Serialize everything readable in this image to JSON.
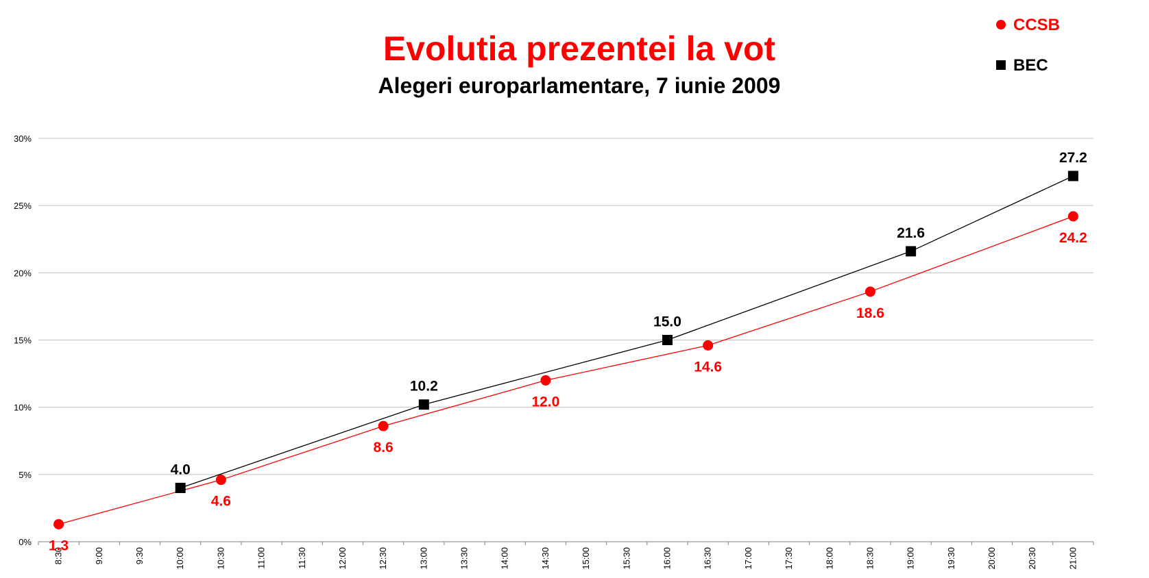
{
  "chart_data": {
    "type": "line",
    "title": "Evolutia prezentei la vot",
    "subtitle": "Alegeri europarlamentare, 7 iunie 2009",
    "xlabel": "",
    "ylabel": "",
    "ylim": [
      0,
      30
    ],
    "yticks": [
      "0%",
      "5%",
      "10%",
      "15%",
      "20%",
      "25%",
      "30%"
    ],
    "categories": [
      "8:30",
      "9:00",
      "9:30",
      "10:00",
      "10:30",
      "11:00",
      "11:30",
      "12:00",
      "12:30",
      "13:00",
      "13:30",
      "14:00",
      "14:30",
      "15:00",
      "15:30",
      "16:00",
      "16:30",
      "17:00",
      "17:30",
      "18:00",
      "18:30",
      "19:00",
      "19:30",
      "20:00",
      "20:30",
      "21:00"
    ],
    "grid": true,
    "legend_position": "top-right",
    "series": [
      {
        "name": "CCSB",
        "color": "#ff0000",
        "marker": "circle",
        "label_position": "below",
        "points": [
          {
            "x": "8:30",
            "value": 1.3,
            "label": "1.3"
          },
          {
            "x": "10:30",
            "value": 4.6,
            "label": "4.6"
          },
          {
            "x": "12:30",
            "value": 8.6,
            "label": "8.6"
          },
          {
            "x": "14:30",
            "value": 12.0,
            "label": "12.0"
          },
          {
            "x": "16:30",
            "value": 14.6,
            "label": "14.6"
          },
          {
            "x": "18:30",
            "value": 18.6,
            "label": "18.6"
          },
          {
            "x": "21:00",
            "value": 24.2,
            "label": "24.2"
          }
        ]
      },
      {
        "name": "BEC",
        "color": "#000000",
        "marker": "square",
        "label_position": "above",
        "points": [
          {
            "x": "10:00",
            "value": 4.0,
            "label": "4.0"
          },
          {
            "x": "13:00",
            "value": 10.2,
            "label": "10.2"
          },
          {
            "x": "16:00",
            "value": 15.0,
            "label": "15.0"
          },
          {
            "x": "19:00",
            "value": 21.6,
            "label": "21.6"
          },
          {
            "x": "21:00",
            "value": 27.2,
            "label": "27.2"
          }
        ]
      }
    ]
  },
  "colors": {
    "title": "#ff0000",
    "subtitle": "#000000",
    "grid": "#c0c0c0",
    "axis": "#808080"
  }
}
